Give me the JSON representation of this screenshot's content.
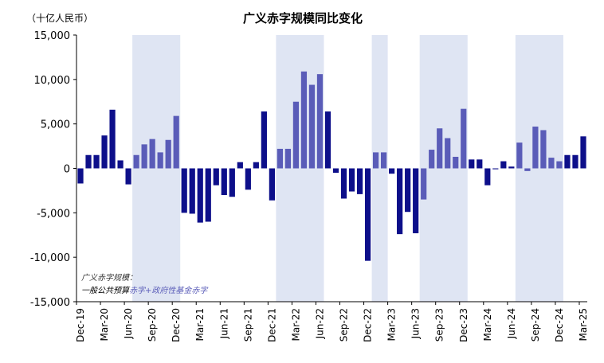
{
  "chart_data": {
    "type": "bar",
    "title": "广义赤字规模同比变化",
    "unit_label": "（十亿人民币）",
    "ylim": [
      -15000,
      15000
    ],
    "yticks": [
      15000,
      10000,
      5000,
      0,
      -5000,
      -10000,
      -15000
    ],
    "ytick_labels": [
      "15,000",
      "10,000",
      "5,000",
      "0",
      "-5,000",
      "-10,000",
      "-15,000"
    ],
    "xtick_labels": [
      "Dec-19",
      "Mar-20",
      "Jun-20",
      "Sep-20",
      "Dec-20",
      "Mar-21",
      "Jun-21",
      "Sep-21",
      "Dec-21",
      "Mar-22",
      "Jun-22",
      "Sep-22",
      "Dec-22",
      "Mar-23",
      "Jun-23",
      "Sep-23",
      "Dec-23",
      "Mar-24",
      "Jun-24",
      "Sep-24",
      "Dec-24",
      "Mar-25"
    ],
    "months": [
      "Dec-19",
      "Jan-20",
      "Feb-20",
      "Mar-20",
      "Apr-20",
      "May-20",
      "Jun-20",
      "Jul-20",
      "Aug-20",
      "Sep-20",
      "Oct-20",
      "Nov-20",
      "Dec-20",
      "Jan-21",
      "Feb-21",
      "Mar-21",
      "Apr-21",
      "May-21",
      "Jun-21",
      "Jul-21",
      "Aug-21",
      "Sep-21",
      "Oct-21",
      "Nov-21",
      "Dec-21",
      "Jan-22",
      "Feb-22",
      "Mar-22",
      "Apr-22",
      "May-22",
      "Jun-22",
      "Jul-22",
      "Aug-22",
      "Sep-22",
      "Oct-22",
      "Nov-22",
      "Dec-22",
      "Jan-23",
      "Feb-23",
      "Mar-23",
      "Apr-23",
      "May-23",
      "Jun-23",
      "Jul-23",
      "Aug-23",
      "Sep-23",
      "Oct-23",
      "Nov-23",
      "Dec-23",
      "Jan-24",
      "Feb-24",
      "Mar-24",
      "Apr-24",
      "May-24",
      "Jun-24",
      "Jul-24",
      "Aug-24",
      "Sep-24",
      "Oct-24",
      "Nov-24",
      "Dec-24",
      "Jan-25",
      "Feb-25",
      "Mar-25"
    ],
    "values": [
      -1700,
      1500,
      1500,
      3700,
      6600,
      900,
      -1800,
      1500,
      2700,
      3300,
      1800,
      3200,
      5900,
      -5000,
      -5100,
      -6100,
      -6000,
      -1900,
      -3000,
      -3200,
      700,
      -2400,
      700,
      6400,
      -3600,
      2200,
      2200,
      7500,
      10900,
      9400,
      10600,
      6400,
      -500,
      -3400,
      -2600,
      -2900,
      -10400,
      1800,
      1800,
      -600,
      -7400,
      -4900,
      -7300,
      -3500,
      2100,
      4500,
      3400,
      1300,
      6700,
      1000,
      1000,
      -1900,
      -100,
      800,
      200,
      2900,
      -300,
      4700,
      4300,
      1200,
      800,
      1500,
      1500,
      3600
    ],
    "shaded_ranges": [
      [
        "Jul-20",
        "Dec-20"
      ],
      [
        "Jan-22",
        "Jun-22"
      ],
      [
        "Jan-23",
        "Feb-23"
      ],
      [
        "Jul-23",
        "Dec-23"
      ],
      [
        "Jul-24",
        "Dec-24"
      ]
    ],
    "colors": {
      "dark": "#0d0f8a",
      "light": "#5a5cb8",
      "shade": "#dfe5f3",
      "negative_label": "#d9001b"
    },
    "grid": false,
    "legend": "none",
    "note": {
      "line1": "广义赤字规模：",
      "line2_part1": "一般公共预算",
      "line2_part2": "赤字+政府性基金赤字"
    }
  }
}
